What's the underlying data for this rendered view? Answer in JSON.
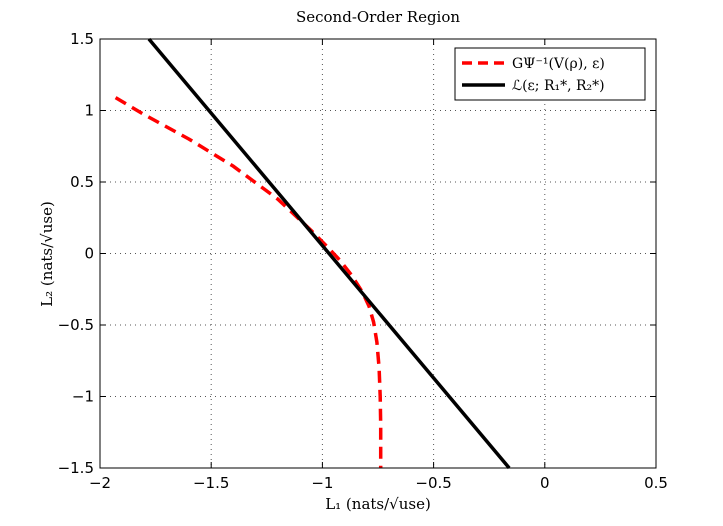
{
  "chart_data": {
    "type": "line",
    "title": "Second-Order Region",
    "xlabel": "L₁ (nats/√use)",
    "ylabel": "L₂ (nats/√use)",
    "xlim": [
      -2,
      0.5
    ],
    "ylim": [
      -1.5,
      1.5
    ],
    "grid": true,
    "legend_position": "top-right",
    "x_ticks": [
      -2,
      -1.5,
      -1,
      -0.5,
      0,
      0.5
    ],
    "x_tick_labels": [
      "−2",
      "−1.5",
      "−1",
      "−0.5",
      "0",
      "0.5"
    ],
    "y_ticks": [
      1.5,
      1,
      0.5,
      0,
      -0.5,
      -1,
      -1.5
    ],
    "y_tick_labels": [
      "1.5",
      "1",
      "0.5",
      "0",
      "−0.5",
      "−1",
      "−1.5"
    ],
    "series": [
      {
        "name": "GΨ⁻¹(V(ρ), ε)",
        "style": "dashed",
        "color": "#ff0000",
        "x": [
          -1.93,
          -1.8,
          -1.6,
          -1.4,
          -1.2,
          -1.05,
          -0.98,
          -0.92,
          -0.87,
          -0.82,
          -0.79,
          -0.77,
          -0.755,
          -0.745,
          -0.74,
          -0.738,
          -0.738
        ],
        "y": [
          1.09,
          0.97,
          0.8,
          0.61,
          0.38,
          0.16,
          0.05,
          -0.05,
          -0.15,
          -0.27,
          -0.37,
          -0.48,
          -0.62,
          -0.8,
          -1.0,
          -1.2,
          -1.5
        ]
      },
      {
        "name": "ℒ(ε; R₁*, R₂*)",
        "style": "solid",
        "color": "#000000",
        "x": [
          -1.78,
          -0.16
        ],
        "y": [
          1.5,
          -1.5
        ]
      }
    ]
  }
}
